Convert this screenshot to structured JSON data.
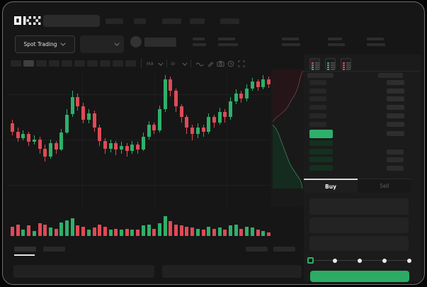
{
  "brand": {
    "name": "OKX"
  },
  "header": {
    "nav_item_count": 5,
    "search_value": ""
  },
  "subheader": {
    "market_type": "Spot Trading",
    "stat_group_count": 5
  },
  "toolbar": {
    "interval_block_count": 10,
    "active_interval_index": 1,
    "icons": [
      "ma-indicator",
      "indicator-dropdown",
      "line-style",
      "draw-tool",
      "camera-snapshot",
      "history-clock",
      "fullscreen-expand"
    ],
    "ma_label": "MA",
    "ib_label": "Ib"
  },
  "orderbook": {
    "view_icons": [
      "book-combined-view",
      "book-bids-view",
      "book-asks-view"
    ],
    "ask_rows": 6,
    "bid_rows": [
      {
        "amount": false
      },
      {
        "amount": true
      },
      {
        "amount": true
      },
      {
        "amount": true
      }
    ],
    "last_price_highlight": "green"
  },
  "trade": {
    "buy_label": "Buy",
    "sell_label": "Sell",
    "field_count": 3,
    "slider_stops": 5,
    "slider_active_stop": 0
  },
  "colors": {
    "up_green": "#2eb06a",
    "down_red": "#df4a55",
    "bid_tint": "#14301f",
    "buy_button": "#2bab63",
    "depth_ask_fill": "#261518",
    "depth_ask_line": "#8c4b52",
    "depth_bid_fill": "#152b1f",
    "depth_bid_line": "#3e8f63",
    "placeholder": "#282828",
    "window_bg": "#161616"
  },
  "chart_data": {
    "type": "candlestick",
    "title": "",
    "note": "stylized mockup - no axis tick labels visible; values normalized 0-100",
    "ylim": [
      0,
      100
    ],
    "grid": true,
    "candles_ohlc": [
      [
        63,
        66,
        54,
        57
      ],
      [
        57,
        60,
        49,
        52
      ],
      [
        52,
        58,
        50,
        55
      ],
      [
        55,
        57,
        46,
        49
      ],
      [
        49,
        54,
        47,
        51
      ],
      [
        51,
        53,
        40,
        44
      ],
      [
        44,
        47,
        34,
        38
      ],
      [
        38,
        51,
        36,
        48
      ],
      [
        48,
        50,
        40,
        43
      ],
      [
        43,
        59,
        42,
        56
      ],
      [
        56,
        74,
        55,
        70
      ],
      [
        70,
        88,
        68,
        83
      ],
      [
        83,
        86,
        73,
        76
      ],
      [
        76,
        79,
        63,
        66
      ],
      [
        66,
        74,
        63,
        71
      ],
      [
        71,
        73,
        57,
        60
      ],
      [
        60,
        62,
        46,
        50
      ],
      [
        50,
        52,
        40,
        44
      ],
      [
        44,
        51,
        41,
        48
      ],
      [
        48,
        50,
        39,
        43
      ],
      [
        43,
        49,
        40,
        46
      ],
      [
        46,
        48,
        38,
        42
      ],
      [
        42,
        50,
        40,
        47
      ],
      [
        47,
        49,
        40,
        43
      ],
      [
        43,
        56,
        42,
        53
      ],
      [
        53,
        65,
        51,
        62
      ],
      [
        62,
        64,
        55,
        58
      ],
      [
        58,
        77,
        56,
        74
      ],
      [
        74,
        100,
        72,
        97
      ],
      [
        97,
        99,
        84,
        88
      ],
      [
        88,
        90,
        72,
        76
      ],
      [
        76,
        78,
        64,
        68
      ],
      [
        68,
        70,
        55,
        60
      ],
      [
        60,
        62,
        50,
        55
      ],
      [
        55,
        63,
        52,
        60
      ],
      [
        60,
        62,
        53,
        57
      ],
      [
        57,
        71,
        55,
        68
      ],
      [
        68,
        70,
        60,
        64
      ],
      [
        64,
        75,
        62,
        72
      ],
      [
        72,
        74,
        64,
        68
      ],
      [
        68,
        83,
        66,
        80
      ],
      [
        80,
        89,
        78,
        86
      ],
      [
        86,
        88,
        79,
        82
      ],
      [
        82,
        93,
        80,
        90
      ],
      [
        90,
        98,
        88,
        95
      ],
      [
        95,
        97,
        88,
        91
      ],
      [
        91,
        100,
        89,
        97
      ],
      [
        97,
        99,
        90,
        93
      ]
    ],
    "volumes": [
      45,
      55,
      30,
      50,
      25,
      60,
      55,
      40,
      35,
      65,
      75,
      85,
      50,
      45,
      30,
      40,
      55,
      45,
      30,
      35,
      30,
      35,
      30,
      30,
      50,
      55,
      35,
      60,
      95,
      70,
      55,
      50,
      45,
      40,
      35,
      30,
      45,
      35,
      40,
      30,
      50,
      55,
      35,
      45,
      40,
      30,
      22,
      18
    ],
    "depth": {
      "orientation": "vertical",
      "asks_line": [
        [
          46,
          2
        ],
        [
          43,
          8
        ],
        [
          41,
          16
        ],
        [
          39,
          24
        ],
        [
          36,
          32
        ],
        [
          33,
          38
        ],
        [
          29,
          44
        ],
        [
          26,
          50
        ],
        [
          22,
          56
        ],
        [
          18,
          60
        ],
        [
          13,
          64
        ],
        [
          8,
          68
        ],
        [
          3,
          74
        ]
      ],
      "bids_line": [
        [
          3,
          78
        ],
        [
          8,
          84
        ],
        [
          11,
          90
        ],
        [
          14,
          98
        ],
        [
          17,
          106
        ],
        [
          20,
          114
        ],
        [
          23,
          122
        ],
        [
          26,
          130
        ],
        [
          30,
          138
        ],
        [
          34,
          144
        ],
        [
          38,
          150
        ],
        [
          42,
          156
        ],
        [
          44,
          162
        ],
        [
          45,
          168
        ]
      ]
    }
  }
}
